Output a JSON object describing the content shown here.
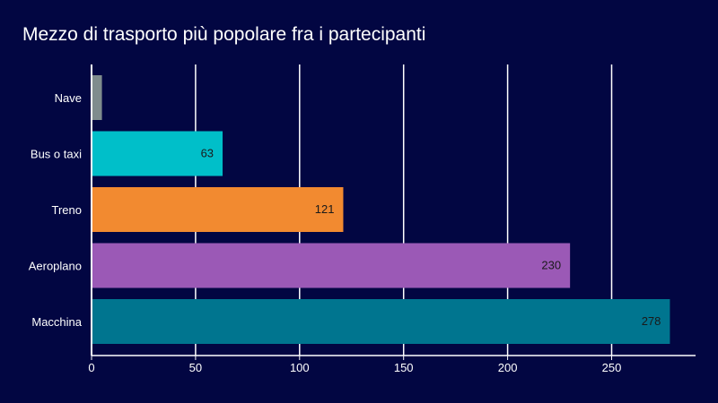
{
  "chart_data": {
    "type": "bar",
    "orientation": "horizontal",
    "title": "Mezzo di trasporto più popolare fra i partecipanti",
    "xlabel": "",
    "ylabel": "",
    "categories": [
      "Nave",
      "Bus o taxi",
      "Treno",
      "Aeroplano",
      "Macchina"
    ],
    "values": [
      5,
      63,
      121,
      230,
      278
    ],
    "data_labels": [
      "",
      "63",
      "121",
      "230",
      "278"
    ],
    "colors": [
      "#7f8c8d",
      "#00bfc9",
      "#f28a30",
      "#9b59b6",
      "#00758f"
    ],
    "xlim": [
      0,
      290
    ],
    "xticks": [
      0,
      50,
      100,
      150,
      200,
      250
    ],
    "grid": "vertical",
    "legend": "none"
  },
  "theme": {
    "background": "#020642",
    "text": "#ffffff",
    "grid": "#ffffff"
  }
}
